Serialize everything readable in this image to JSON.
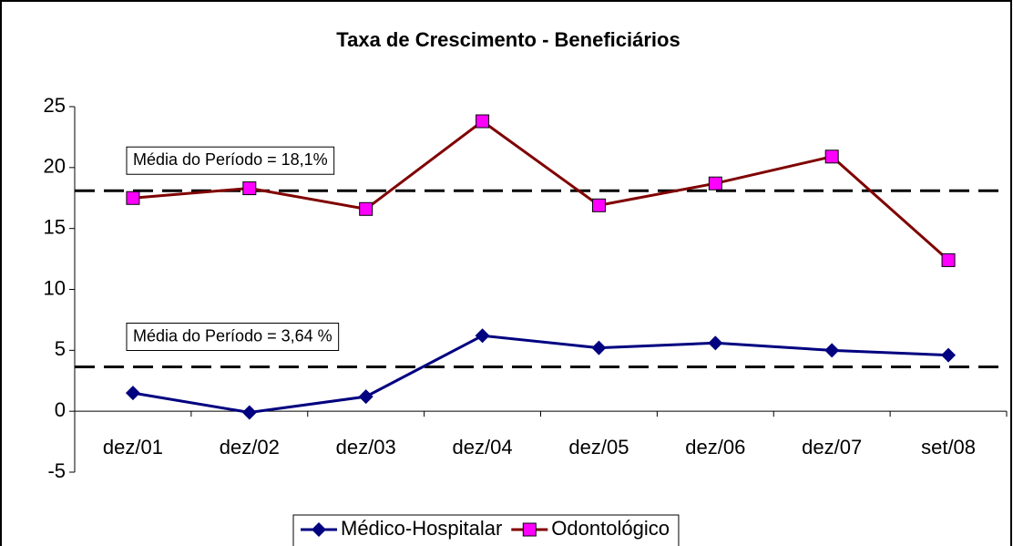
{
  "chart_data": {
    "type": "line",
    "title": "Taxa de Crescimento - Beneficiários",
    "categories": [
      "dez/01",
      "dez/02",
      "dez/03",
      "dez/04",
      "dez/05",
      "dez/06",
      "dez/07",
      "set/08"
    ],
    "series": [
      {
        "name": "Médico-Hospitalar",
        "color": "#000080",
        "marker_color": "#000080",
        "marker": "diamond",
        "values": [
          1.5,
          -0.1,
          1.2,
          6.2,
          5.2,
          5.6,
          5.0,
          4.6
        ]
      },
      {
        "name": "Odontológico",
        "color": "#800000",
        "marker_color": "#ff00ff",
        "marker": "square",
        "values": [
          17.5,
          18.3,
          16.6,
          23.8,
          16.9,
          18.7,
          20.9,
          12.4
        ]
      }
    ],
    "reference_lines": [
      {
        "value": 18.1,
        "label": "Média do Período = 18,1%"
      },
      {
        "value": 3.64,
        "label": "Média do Período = 3,64 %"
      }
    ],
    "ylim": [
      -5,
      25
    ],
    "yticks": [
      -5,
      0,
      5,
      10,
      15,
      20,
      25
    ],
    "legend": "bottom"
  }
}
